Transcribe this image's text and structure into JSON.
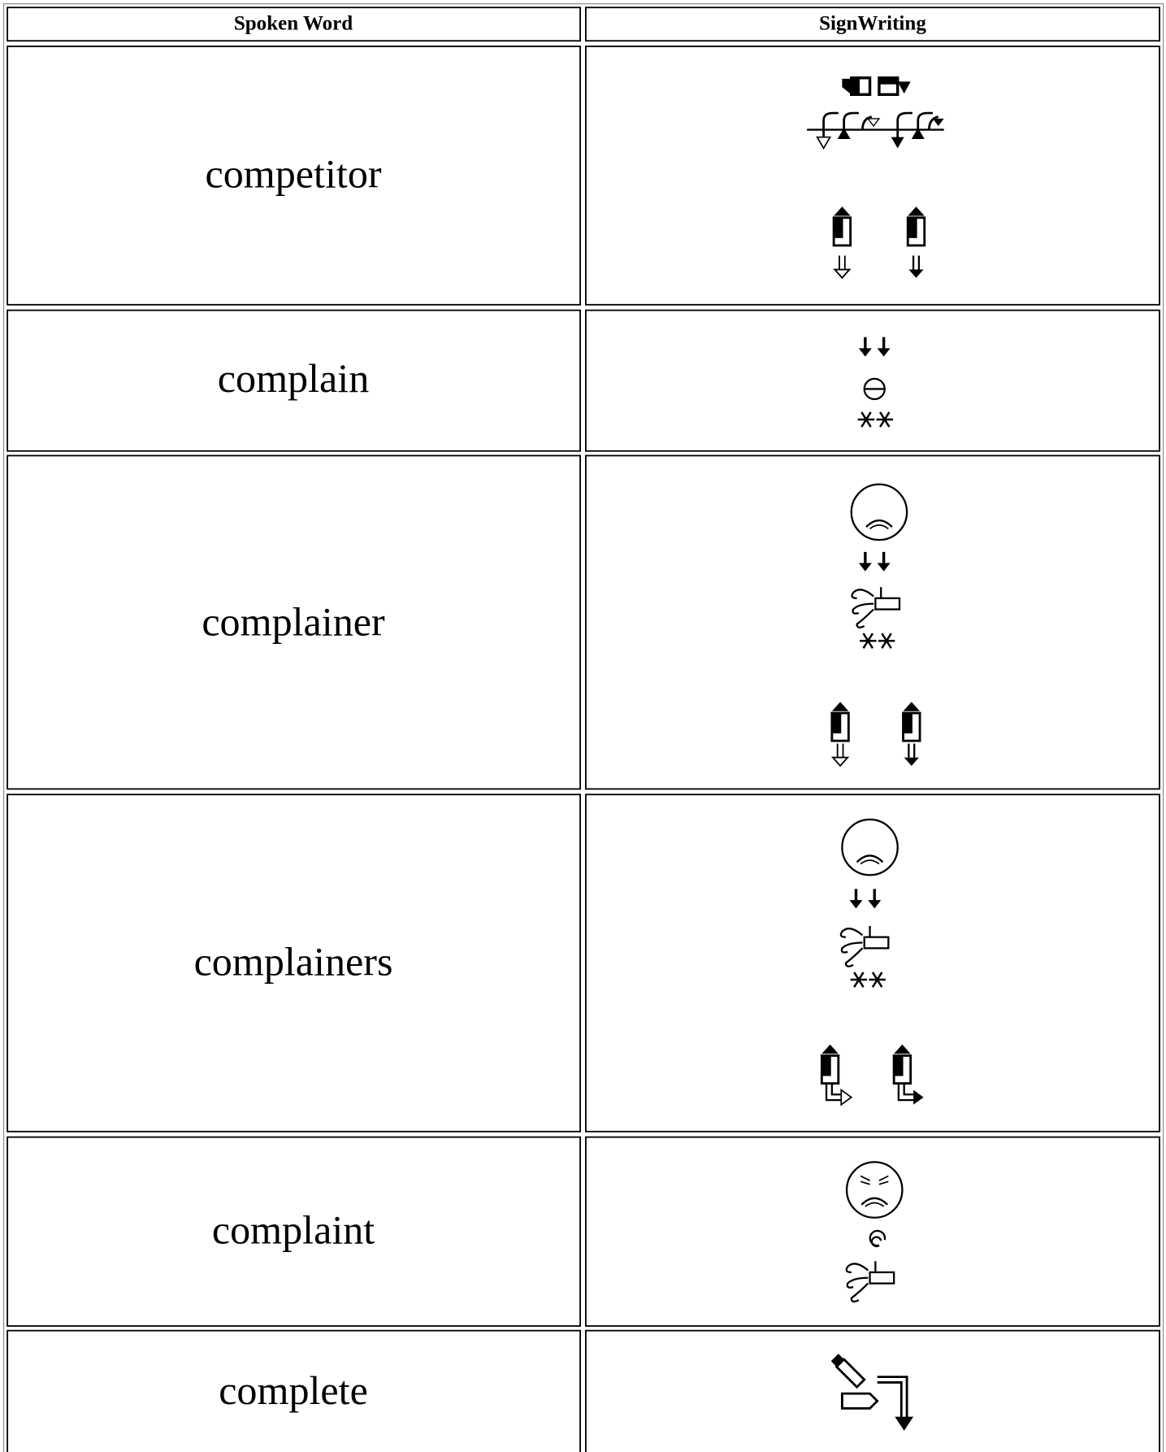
{
  "header": {
    "spoken_word": "Spoken Word",
    "signwriting": "SignWriting"
  },
  "rows": [
    {
      "word": "competitor"
    },
    {
      "word": "complain"
    },
    {
      "word": "complainer"
    },
    {
      "word": "complainers"
    },
    {
      "word": "complaint"
    },
    {
      "word": "complete"
    }
  ]
}
